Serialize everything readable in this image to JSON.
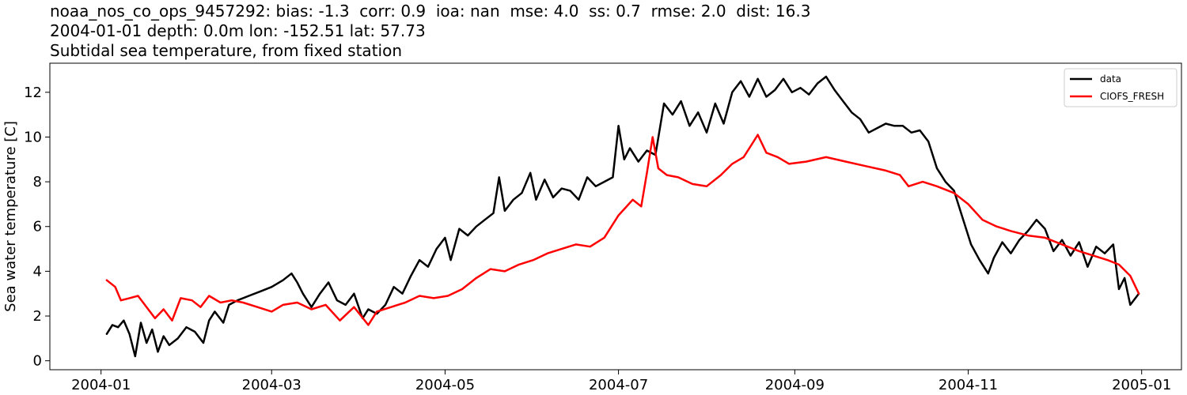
{
  "header": {
    "line1": "noaa_nos_co_ops_9457292: bias: -1.3  corr: 0.9  ioa: nan  mse: 4.0  ss: 0.7  rmse: 2.0  dist: 16.3",
    "line2": "2004-01-01 depth: 0.0m lon: -152.51 lat: 57.73",
    "line3": "Subtidal sea temperature, from fixed station"
  },
  "chart_data": {
    "type": "line",
    "title": "Subtidal sea temperature, from fixed station",
    "xlabel": "",
    "ylabel": "Sea water temperature [C]",
    "xlim": [
      "2003-12-14",
      "2005-01-15"
    ],
    "ylim": [
      -0.4,
      13.3
    ],
    "grid": false,
    "legend_position": "top-right",
    "x_tick_labels": [
      "2004-01",
      "2004-03",
      "2004-05",
      "2004-07",
      "2004-09",
      "2004-11",
      "2005-01"
    ],
    "x_ticks": [
      "2004-01-01",
      "2004-03-01",
      "2004-05-01",
      "2004-07-01",
      "2004-09-01",
      "2004-11-01",
      "2005-01-01"
    ],
    "y_ticks": [
      0,
      2,
      4,
      6,
      8,
      10,
      12
    ],
    "series": [
      {
        "name": "data",
        "color": "#000000",
        "points": [
          [
            "2004-01-03",
            1.2
          ],
          [
            "2004-01-05",
            1.6
          ],
          [
            "2004-01-07",
            1.5
          ],
          [
            "2004-01-09",
            1.8
          ],
          [
            "2004-01-11",
            1.2
          ],
          [
            "2004-01-13",
            0.2
          ],
          [
            "2004-01-15",
            1.7
          ],
          [
            "2004-01-17",
            0.8
          ],
          [
            "2004-01-19",
            1.4
          ],
          [
            "2004-01-21",
            0.4
          ],
          [
            "2004-01-23",
            1.1
          ],
          [
            "2004-01-25",
            0.7
          ],
          [
            "2004-01-28",
            1.0
          ],
          [
            "2004-01-31",
            1.5
          ],
          [
            "2004-02-03",
            1.3
          ],
          [
            "2004-02-06",
            0.8
          ],
          [
            "2004-02-08",
            1.8
          ],
          [
            "2004-02-10",
            2.2
          ],
          [
            "2004-02-13",
            1.7
          ],
          [
            "2004-02-15",
            2.5
          ],
          [
            "2004-02-18",
            2.7
          ],
          [
            "2004-02-22",
            2.9
          ],
          [
            "2004-02-26",
            3.1
          ],
          [
            "2004-03-01",
            3.3
          ],
          [
            "2004-03-05",
            3.6
          ],
          [
            "2004-03-08",
            3.9
          ],
          [
            "2004-03-10",
            3.5
          ],
          [
            "2004-03-12",
            3.0
          ],
          [
            "2004-03-15",
            2.4
          ],
          [
            "2004-03-18",
            3.0
          ],
          [
            "2004-03-21",
            3.5
          ],
          [
            "2004-03-24",
            2.7
          ],
          [
            "2004-03-27",
            2.5
          ],
          [
            "2004-03-30",
            3.0
          ],
          [
            "2004-04-02",
            1.9
          ],
          [
            "2004-04-04",
            2.3
          ],
          [
            "2004-04-07",
            2.1
          ],
          [
            "2004-04-10",
            2.5
          ],
          [
            "2004-04-13",
            3.3
          ],
          [
            "2004-04-16",
            3.0
          ],
          [
            "2004-04-19",
            3.8
          ],
          [
            "2004-04-22",
            4.5
          ],
          [
            "2004-04-25",
            4.2
          ],
          [
            "2004-04-28",
            5.0
          ],
          [
            "2004-05-01",
            5.5
          ],
          [
            "2004-05-03",
            4.5
          ],
          [
            "2004-05-06",
            5.9
          ],
          [
            "2004-05-09",
            5.6
          ],
          [
            "2004-05-12",
            6.0
          ],
          [
            "2004-05-15",
            6.3
          ],
          [
            "2004-05-18",
            6.6
          ],
          [
            "2004-05-20",
            8.2
          ],
          [
            "2004-05-22",
            6.7
          ],
          [
            "2004-05-25",
            7.2
          ],
          [
            "2004-05-28",
            7.5
          ],
          [
            "2004-05-31",
            8.4
          ],
          [
            "2004-06-02",
            7.2
          ],
          [
            "2004-06-05",
            8.1
          ],
          [
            "2004-06-08",
            7.3
          ],
          [
            "2004-06-11",
            7.7
          ],
          [
            "2004-06-14",
            7.6
          ],
          [
            "2004-06-17",
            7.2
          ],
          [
            "2004-06-20",
            8.2
          ],
          [
            "2004-06-23",
            7.8
          ],
          [
            "2004-06-26",
            8.0
          ],
          [
            "2004-06-29",
            8.2
          ],
          [
            "2004-07-01",
            10.5
          ],
          [
            "2004-07-03",
            9.0
          ],
          [
            "2004-07-05",
            9.5
          ],
          [
            "2004-07-08",
            8.9
          ],
          [
            "2004-07-11",
            9.4
          ],
          [
            "2004-07-14",
            9.2
          ],
          [
            "2004-07-17",
            11.5
          ],
          [
            "2004-07-20",
            11.0
          ],
          [
            "2004-07-23",
            11.6
          ],
          [
            "2004-07-26",
            10.5
          ],
          [
            "2004-07-29",
            11.1
          ],
          [
            "2004-08-01",
            10.2
          ],
          [
            "2004-08-04",
            11.5
          ],
          [
            "2004-08-07",
            10.6
          ],
          [
            "2004-08-10",
            12.0
          ],
          [
            "2004-08-13",
            12.5
          ],
          [
            "2004-08-16",
            11.8
          ],
          [
            "2004-08-19",
            12.6
          ],
          [
            "2004-08-22",
            11.8
          ],
          [
            "2004-08-25",
            12.1
          ],
          [
            "2004-08-28",
            12.6
          ],
          [
            "2004-08-31",
            12.0
          ],
          [
            "2004-09-03",
            12.2
          ],
          [
            "2004-09-06",
            11.9
          ],
          [
            "2004-09-09",
            12.4
          ],
          [
            "2004-09-12",
            12.7
          ],
          [
            "2004-09-15",
            12.1
          ],
          [
            "2004-09-18",
            11.6
          ],
          [
            "2004-09-21",
            11.1
          ],
          [
            "2004-09-24",
            10.8
          ],
          [
            "2004-09-27",
            10.2
          ],
          [
            "2004-09-30",
            10.4
          ],
          [
            "2004-10-03",
            10.6
          ],
          [
            "2004-10-06",
            10.5
          ],
          [
            "2004-10-09",
            10.5
          ],
          [
            "2004-10-12",
            10.2
          ],
          [
            "2004-10-15",
            10.3
          ],
          [
            "2004-10-18",
            9.8
          ],
          [
            "2004-10-21",
            8.6
          ],
          [
            "2004-10-24",
            8.0
          ],
          [
            "2004-10-27",
            7.6
          ],
          [
            "2004-10-30",
            6.4
          ],
          [
            "2004-11-02",
            5.2
          ],
          [
            "2004-11-05",
            4.5
          ],
          [
            "2004-11-08",
            3.9
          ],
          [
            "2004-11-10",
            4.6
          ],
          [
            "2004-11-13",
            5.3
          ],
          [
            "2004-11-16",
            4.8
          ],
          [
            "2004-11-19",
            5.4
          ],
          [
            "2004-11-22",
            5.8
          ],
          [
            "2004-11-25",
            6.3
          ],
          [
            "2004-11-28",
            5.9
          ],
          [
            "2004-12-01",
            4.9
          ],
          [
            "2004-12-04",
            5.4
          ],
          [
            "2004-12-07",
            4.7
          ],
          [
            "2004-12-10",
            5.3
          ],
          [
            "2004-12-13",
            4.2
          ],
          [
            "2004-12-16",
            5.1
          ],
          [
            "2004-12-19",
            4.8
          ],
          [
            "2004-12-22",
            5.2
          ],
          [
            "2004-12-24",
            3.2
          ],
          [
            "2004-12-26",
            3.7
          ],
          [
            "2004-12-28",
            2.5
          ],
          [
            "2004-12-31",
            3.0
          ]
        ]
      },
      {
        "name": "CIOFS_FRESH",
        "color": "#ff0000",
        "points": [
          [
            "2004-01-03",
            3.6
          ],
          [
            "2004-01-06",
            3.3
          ],
          [
            "2004-01-08",
            2.7
          ],
          [
            "2004-01-11",
            2.8
          ],
          [
            "2004-01-14",
            2.9
          ],
          [
            "2004-01-17",
            2.4
          ],
          [
            "2004-01-20",
            1.9
          ],
          [
            "2004-01-23",
            2.3
          ],
          [
            "2004-01-26",
            1.8
          ],
          [
            "2004-01-29",
            2.8
          ],
          [
            "2004-02-02",
            2.7
          ],
          [
            "2004-02-05",
            2.4
          ],
          [
            "2004-02-08",
            2.9
          ],
          [
            "2004-02-12",
            2.6
          ],
          [
            "2004-02-16",
            2.7
          ],
          [
            "2004-02-20",
            2.6
          ],
          [
            "2004-02-25",
            2.4
          ],
          [
            "2004-03-01",
            2.2
          ],
          [
            "2004-03-05",
            2.5
          ],
          [
            "2004-03-10",
            2.6
          ],
          [
            "2004-03-15",
            2.3
          ],
          [
            "2004-03-20",
            2.5
          ],
          [
            "2004-03-25",
            1.8
          ],
          [
            "2004-03-30",
            2.4
          ],
          [
            "2004-04-04",
            1.6
          ],
          [
            "2004-04-07",
            2.2
          ],
          [
            "2004-04-12",
            2.4
          ],
          [
            "2004-04-17",
            2.6
          ],
          [
            "2004-04-22",
            2.9
          ],
          [
            "2004-04-27",
            2.8
          ],
          [
            "2004-05-02",
            2.9
          ],
          [
            "2004-05-07",
            3.2
          ],
          [
            "2004-05-12",
            3.7
          ],
          [
            "2004-05-17",
            4.1
          ],
          [
            "2004-05-22",
            4.0
          ],
          [
            "2004-05-27",
            4.3
          ],
          [
            "2004-06-01",
            4.5
          ],
          [
            "2004-06-06",
            4.8
          ],
          [
            "2004-06-11",
            5.0
          ],
          [
            "2004-06-16",
            5.2
          ],
          [
            "2004-06-21",
            5.1
          ],
          [
            "2004-06-26",
            5.5
          ],
          [
            "2004-07-01",
            6.5
          ],
          [
            "2004-07-06",
            7.2
          ],
          [
            "2004-07-09",
            6.9
          ],
          [
            "2004-07-11",
            8.4
          ],
          [
            "2004-07-13",
            10.0
          ],
          [
            "2004-07-15",
            8.6
          ],
          [
            "2004-07-18",
            8.3
          ],
          [
            "2004-07-22",
            8.2
          ],
          [
            "2004-07-27",
            7.9
          ],
          [
            "2004-08-01",
            7.8
          ],
          [
            "2004-08-06",
            8.3
          ],
          [
            "2004-08-10",
            8.8
          ],
          [
            "2004-08-14",
            9.1
          ],
          [
            "2004-08-17",
            9.7
          ],
          [
            "2004-08-19",
            10.1
          ],
          [
            "2004-08-22",
            9.3
          ],
          [
            "2004-08-26",
            9.1
          ],
          [
            "2004-08-30",
            8.8
          ],
          [
            "2004-09-05",
            8.9
          ],
          [
            "2004-09-12",
            9.1
          ],
          [
            "2004-09-19",
            8.9
          ],
          [
            "2004-09-26",
            8.7
          ],
          [
            "2004-10-03",
            8.5
          ],
          [
            "2004-10-08",
            8.3
          ],
          [
            "2004-10-11",
            7.8
          ],
          [
            "2004-10-16",
            8.0
          ],
          [
            "2004-10-21",
            7.8
          ],
          [
            "2004-10-27",
            7.5
          ],
          [
            "2004-11-01",
            7.0
          ],
          [
            "2004-11-06",
            6.3
          ],
          [
            "2004-11-11",
            6.0
          ],
          [
            "2004-11-16",
            5.8
          ],
          [
            "2004-11-22",
            5.6
          ],
          [
            "2004-11-28",
            5.5
          ],
          [
            "2004-12-04",
            5.2
          ],
          [
            "2004-12-10",
            4.9
          ],
          [
            "2004-12-15",
            4.7
          ],
          [
            "2004-12-20",
            4.5
          ],
          [
            "2004-12-24",
            4.3
          ],
          [
            "2004-12-28",
            3.8
          ],
          [
            "2004-12-31",
            3.0
          ]
        ]
      }
    ]
  }
}
